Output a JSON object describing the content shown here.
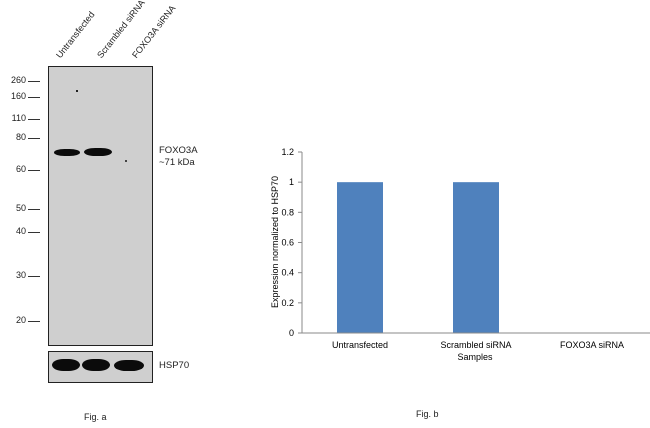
{
  "figure_a": {
    "lanes": [
      "Untransfected",
      "Scrambled siRNA",
      "FOXO3A siRNA"
    ],
    "markers": [
      "260",
      "160",
      "110",
      "80",
      "60",
      "50",
      "40",
      "30",
      "20"
    ],
    "target_label": "FOXO3A",
    "target_size": "~71 kDa",
    "loading_label": "HSP70",
    "caption": "Fig. a"
  },
  "figure_b": {
    "caption": "Fig. b"
  },
  "chart_data": {
    "type": "bar",
    "categories": [
      "Untransfected",
      "Scrambled siRNA",
      "FOXO3A siRNA"
    ],
    "values": [
      1,
      1,
      0
    ],
    "xlabel": "Samples",
    "ylabel": "Expression normalized to HSP70",
    "ylim": [
      0,
      1.2
    ],
    "yticks": [
      "0",
      "0.2",
      "0.4",
      "0.6",
      "0.8",
      "1",
      "1.2"
    ],
    "bar_color": "#4f81bd",
    "grid": false,
    "legend": "none"
  }
}
